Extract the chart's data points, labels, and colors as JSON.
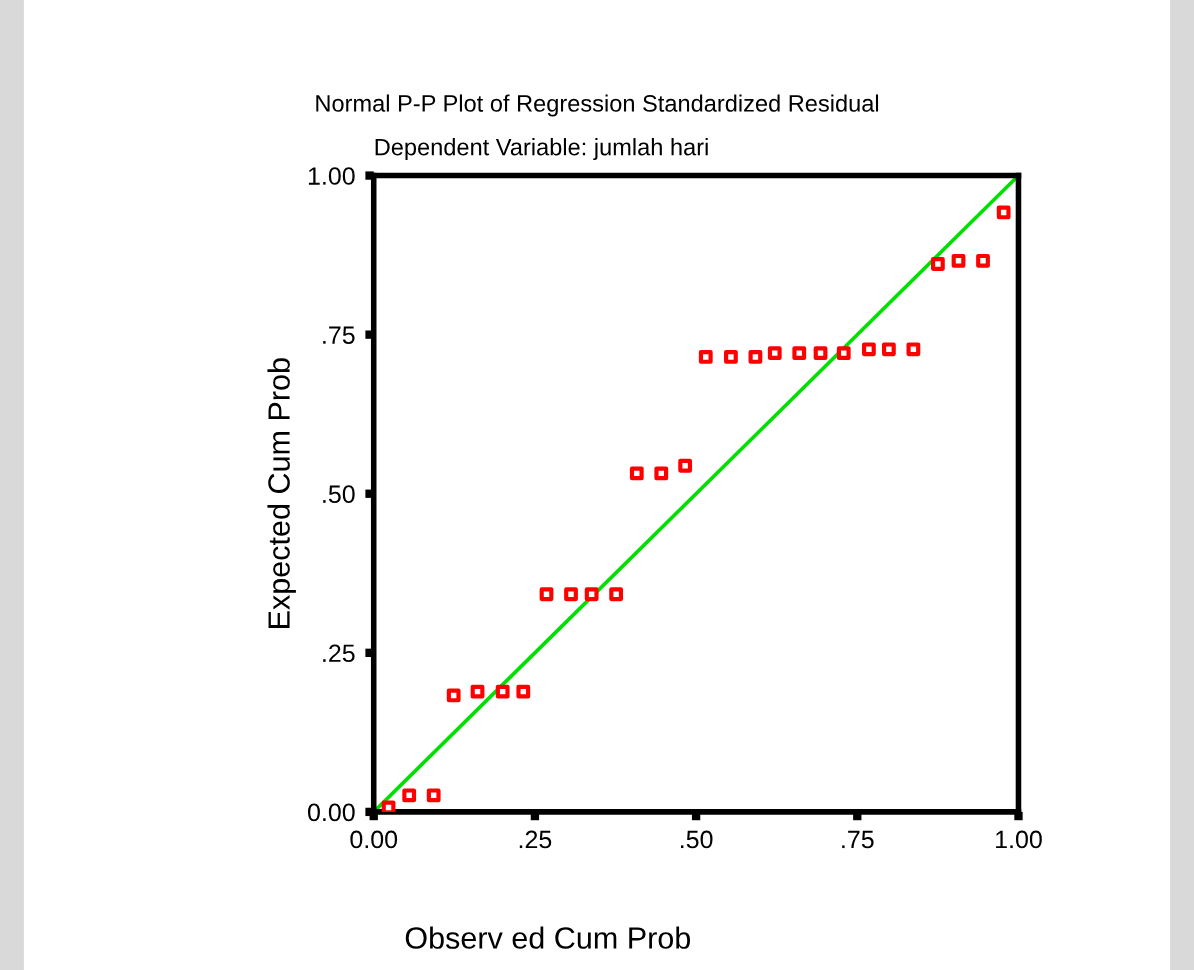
{
  "chart_data": {
    "type": "scatter",
    "title": "Normal P-P Plot of Regression Standardized Residual",
    "subtitle": "Dependent Variable: jumlah hari",
    "xlabel": "Observ ed Cum Prob",
    "ylabel": "Expected Cum Prob",
    "xlim": [
      0,
      1
    ],
    "ylim": [
      0,
      1
    ],
    "xticks": [
      {
        "value": 0,
        "label": "0.00"
      },
      {
        "value": 0.25,
        "label": ".25"
      },
      {
        "value": 0.5,
        "label": ".50"
      },
      {
        "value": 0.75,
        "label": ".75"
      },
      {
        "value": 1,
        "label": "1.00"
      }
    ],
    "yticks": [
      {
        "value": 0,
        "label": "0.00"
      },
      {
        "value": 0.25,
        "label": ".25"
      },
      {
        "value": 0.5,
        "label": ".50"
      },
      {
        "value": 0.75,
        "label": ".75"
      },
      {
        "value": 1,
        "label": "1.00"
      }
    ],
    "grid": false,
    "legend": false,
    "series": [
      {
        "color": "#ff0000",
        "marker": "square",
        "x": [
          0.023,
          0.055,
          0.093,
          0.124,
          0.161,
          0.2,
          0.232,
          0.268,
          0.306,
          0.338,
          0.376,
          0.408,
          0.446,
          0.483,
          0.515,
          0.554,
          0.592,
          0.622,
          0.66,
          0.693,
          0.729,
          0.768,
          0.799,
          0.837,
          0.875,
          0.907,
          0.945,
          0.977
        ],
        "values": [
          0.007,
          0.026,
          0.026,
          0.183,
          0.189,
          0.189,
          0.189,
          0.342,
          0.342,
          0.342,
          0.342,
          0.532,
          0.532,
          0.544,
          0.715,
          0.715,
          0.715,
          0.721,
          0.721,
          0.721,
          0.721,
          0.727,
          0.727,
          0.727,
          0.861,
          0.866,
          0.866,
          0.942
        ]
      },
      {
        "type": "line",
        "color": "#00e000",
        "marker": "none",
        "line_style": "solid",
        "x": [
          0,
          1
        ],
        "values": [
          0,
          1
        ]
      }
    ]
  }
}
